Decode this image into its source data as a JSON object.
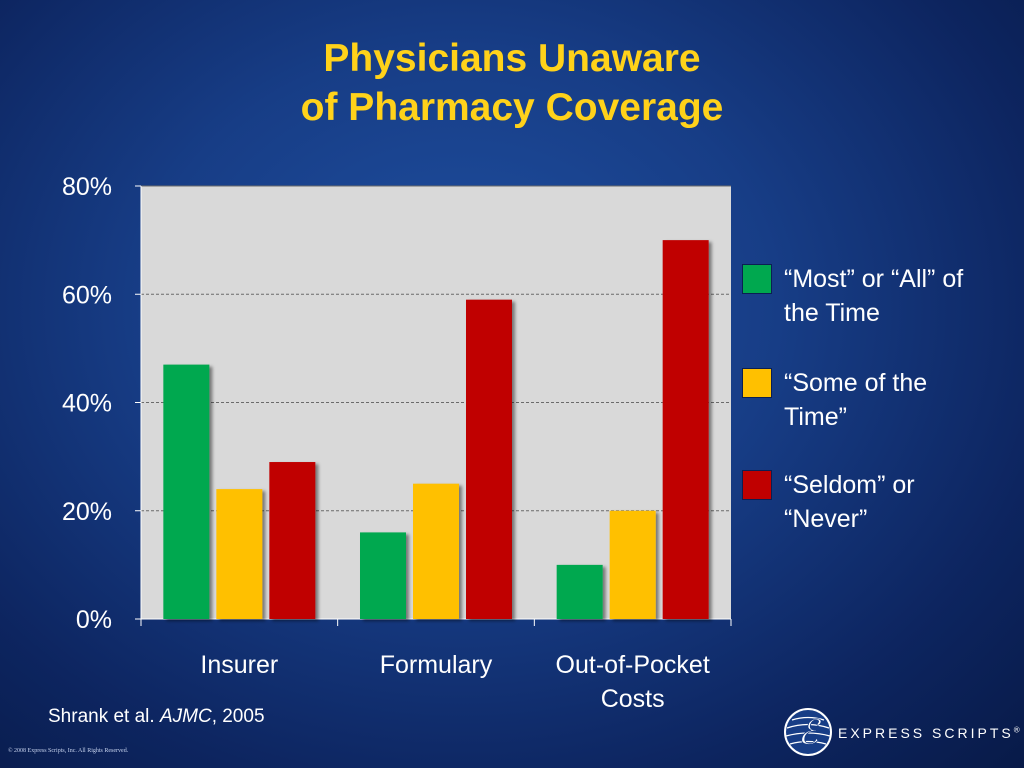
{
  "slide": {
    "title_line1": "Physicians Unaware",
    "title_line2": "of Pharmacy Coverage",
    "citation_authors": "Shrank et al.",
    "citation_journal": "AJMC",
    "citation_year": ", 2005",
    "copyright": "© 2008 Express Scripts, Inc. All Rights Reserved.",
    "logo_text": "EXPRESS SCRIPTS",
    "logo_mark": "ℰ",
    "logo_trademark": "®"
  },
  "colors": {
    "background": "#173d86",
    "title": "#ffd21a",
    "plot_area": "#d9d9d9",
    "green": "#00a84f",
    "yellow": "#ffc000",
    "red": "#c00000"
  },
  "chart_data": {
    "type": "bar",
    "categories": [
      "Insurer",
      "Formulary",
      "Out-of-Pocket Costs"
    ],
    "category_lines": [
      [
        "Insurer"
      ],
      [
        "Formulary"
      ],
      [
        "Out-of-Pocket",
        "Costs"
      ]
    ],
    "series": [
      {
        "name": "“Most” or “All” of the Time",
        "legend_lines": [
          "“Most” or “All” of",
          "the Time"
        ],
        "color": "#00a84f",
        "values": [
          47,
          16,
          10
        ]
      },
      {
        "name": "“Some of the Time”",
        "legend_lines": [
          "“Some of the",
          "Time”"
        ],
        "color": "#ffc000",
        "values": [
          24,
          25,
          20
        ]
      },
      {
        "name": "“Seldom” or “Never”",
        "legend_lines": [
          "“Seldom” or",
          "“Never”"
        ],
        "color": "#c00000",
        "values": [
          29,
          59,
          70
        ]
      }
    ],
    "ylim": [
      0,
      80
    ],
    "yticks": [
      0,
      20,
      40,
      60,
      80
    ],
    "ytick_labels": [
      "0%",
      "20%",
      "40%",
      "60%",
      "80%"
    ],
    "grid": true,
    "legend_position": "right",
    "title": "Physicians Unaware of Pharmacy Coverage",
    "xlabel": "",
    "ylabel": ""
  }
}
